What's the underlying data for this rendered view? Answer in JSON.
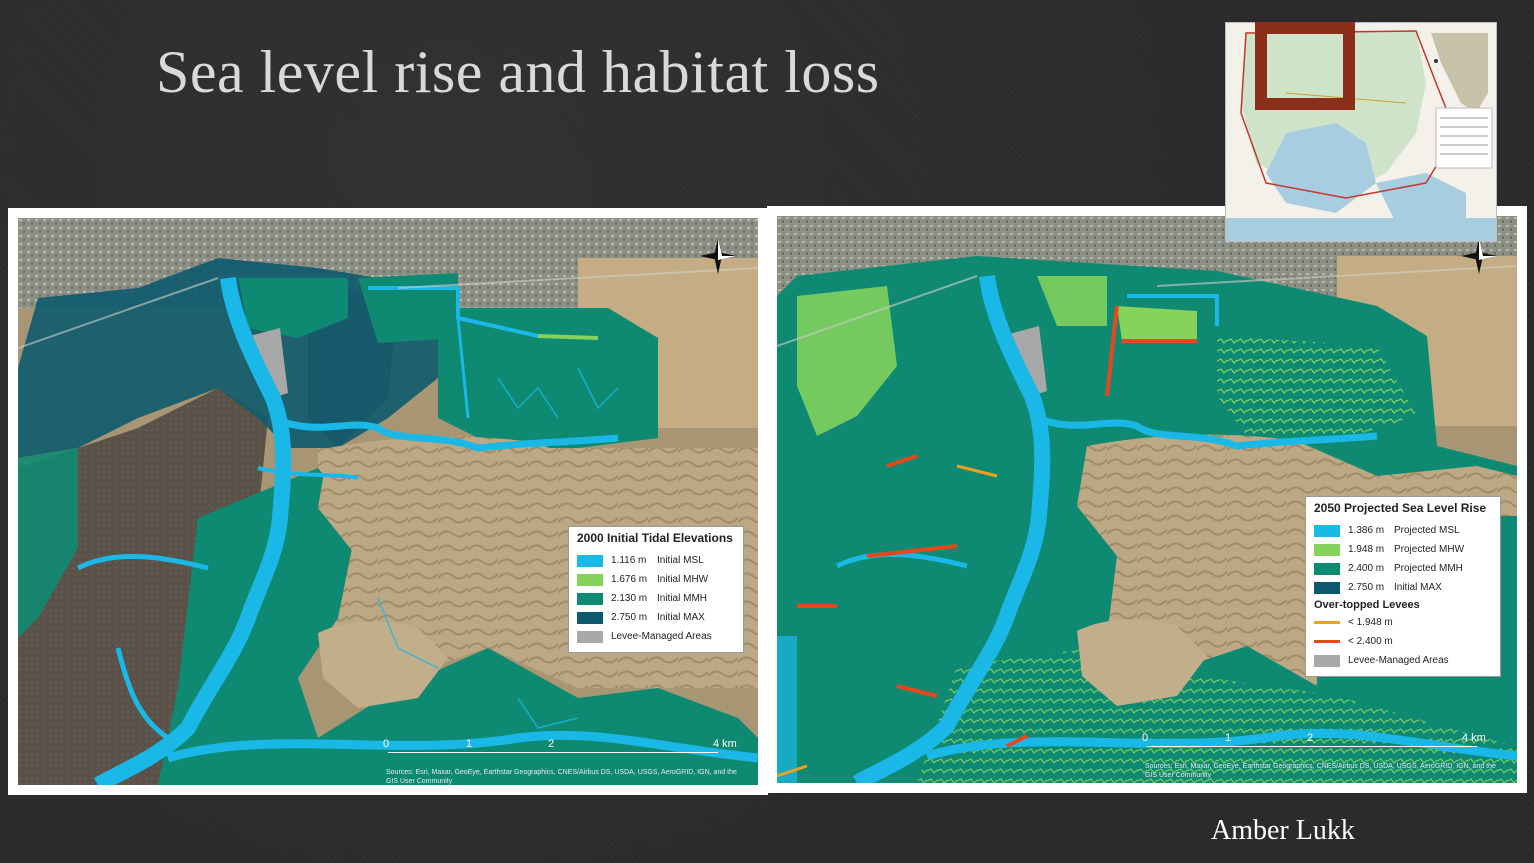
{
  "slide": {
    "title": "Sea level rise and habitat loss",
    "author": "Amber Lukk"
  },
  "colors": {
    "msl": "#19b8e6",
    "mhw": "#86d35c",
    "mmh": "#0f8a72",
    "max": "#0d5a6e",
    "levee_managed": "#a8a8a8",
    "overtop_low": "#f0a020",
    "overtop_high": "#e8471c",
    "inset_frame": "#8b2e1a"
  },
  "map_left": {
    "legend_title": "2000 Initial Tidal Elevations",
    "legend_items": [
      {
        "value": "1.116 m",
        "label": "Initial MSL",
        "color": "#19b8e6"
      },
      {
        "value": "1.676 m",
        "label": "Initial MHW",
        "color": "#86d35c"
      },
      {
        "value": "2.130 m",
        "label": "Initial MMH",
        "color": "#0f8a72"
      },
      {
        "value": "2.750 m",
        "label": "Initial MAX",
        "color": "#0d5a6e"
      },
      {
        "value": "",
        "label": "Levee-Managed Areas",
        "color": "#a8a8a8"
      }
    ],
    "scale": {
      "t0": "0",
      "t1": "1",
      "t2": "2",
      "t4": "4 km"
    },
    "credit": "Sources: Esri, Maxar, GeoEye, Earthstar Geographics, CNES/Airbus DS, USDA, USGS, AeroGRID, IGN, and the GIS User Community"
  },
  "map_right": {
    "legend_title": "2050 Projected Sea Level Rise",
    "legend_items": [
      {
        "value": "1.386 m",
        "label": "Projected MSL",
        "color": "#19b8e6"
      },
      {
        "value": "1.948 m",
        "label": "Projected MHW",
        "color": "#86d35c"
      },
      {
        "value": "2.400 m",
        "label": "Projected MMH",
        "color": "#0f8a72"
      },
      {
        "value": "2.750 m",
        "label": "Initial MAX",
        "color": "#0d5a6e"
      }
    ],
    "overtop_title": "Over-topped Levees",
    "overtop_items": [
      {
        "label": "< 1.948 m",
        "color": "#f0a020"
      },
      {
        "label": "< 2.400 m",
        "color": "#e8471c"
      }
    ],
    "levee_label": "Levee-Managed Areas",
    "scale": {
      "t0": "0",
      "t1": "1",
      "t2": "2",
      "t4": "4 km"
    },
    "credit": "Sources: Esri, Maxar, GeoEye, Earthstar Geographics, CNES/Airbus DS, USDA, USGS, AeroGRID, IGN, and the GIS User Community"
  }
}
